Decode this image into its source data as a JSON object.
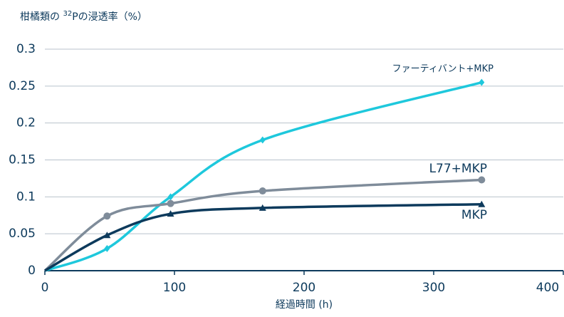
{
  "chart_data": {
    "type": "line",
    "y_label_parts": [
      "柑橘類の ",
      "32",
      "Pの浸透率（%）"
    ],
    "x_label": "経過時間 (h)",
    "x": [
      0,
      48,
      97,
      168,
      337
    ],
    "series": [
      {
        "name": "ファーティバント+MKP",
        "color": "#1ec8dc",
        "marker": "diamond",
        "values": [
          0,
          0.03,
          0.1,
          0.177,
          0.255
        ]
      },
      {
        "name": "L77+MKP",
        "color": "#7f8c9a",
        "marker": "circle",
        "values": [
          0,
          0.074,
          0.091,
          0.108,
          0.123
        ]
      },
      {
        "name": "MKP",
        "color": "#0d3a5c",
        "marker": "triangle",
        "values": [
          0,
          0.048,
          0.077,
          0.085,
          0.09
        ]
      }
    ],
    "xlim": [
      0,
      400
    ],
    "xticks": [
      0,
      100,
      200,
      300,
      400
    ],
    "ylim": [
      0,
      0.3
    ],
    "yticks": [
      0,
      0.05,
      0.1,
      0.15,
      0.2,
      0.25,
      0.3
    ],
    "grid": true
  }
}
